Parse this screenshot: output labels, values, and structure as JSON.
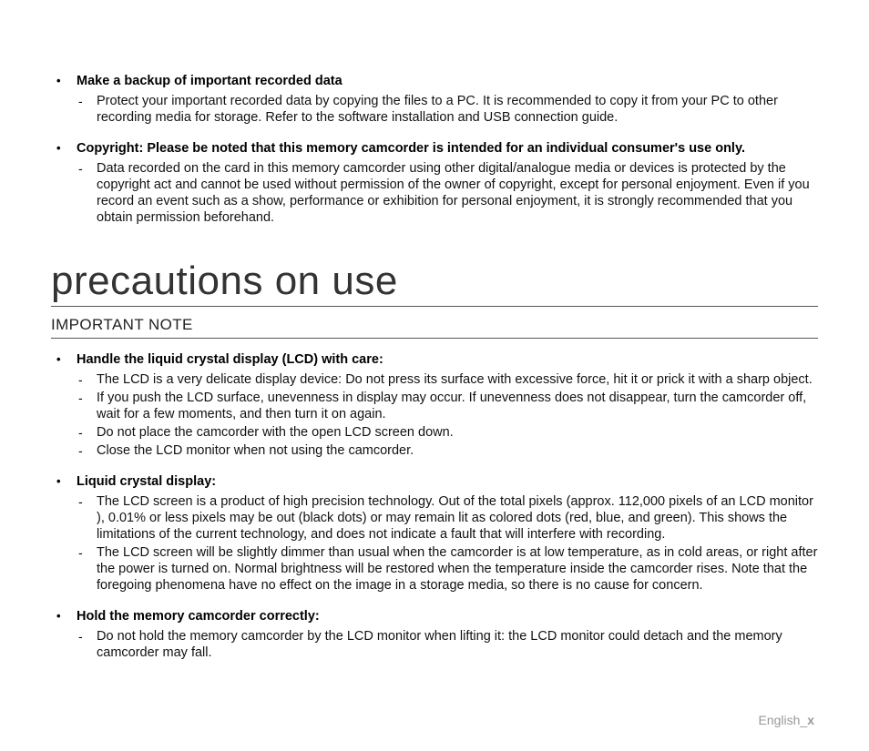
{
  "top": {
    "items": [
      {
        "label": "Make a backup of important recorded data",
        "subs": [
          "Protect your important recorded data by copying the files to a PC. It is recommended to copy it from your PC to other recording media for storage. Refer to the software installation and USB connection guide."
        ]
      },
      {
        "label": "Copyright: Please be noted that this memory camcorder is intended for an individual consumer's use only.",
        "subs": [
          "Data recorded on the card in this memory camcorder using other digital/analogue media or devices is protected by the copyright act and cannot be used without permission of the owner of copyright, except for personal enjoyment. Even if you record an event such as a show, performance or exhibition for personal enjoyment, it is strongly recommended that you obtain permission beforehand."
        ]
      }
    ]
  },
  "title": "precautions on use",
  "subtitle": "IMPORTANT NOTE",
  "notes": {
    "items": [
      {
        "label": "Handle the liquid crystal display (LCD) with care:",
        "subs": [
          "The LCD is a very delicate display device: Do not press its surface with excessive force, hit it or prick it with a sharp object.",
          "If you push the LCD surface, unevenness in display may occur. If unevenness does not disappear, turn the camcorder off, wait for a few moments, and then turn it on again.",
          "Do not place the camcorder with the open LCD screen down.",
          "Close the LCD monitor when not using the camcorder."
        ]
      },
      {
        "label": "Liquid crystal display:",
        "subs": [
          "The LCD screen is a product of high precision technology. Out of the total pixels (approx. 112,000 pixels of an LCD monitor ), 0.01% or less pixels may be out (black dots) or may remain lit as colored dots (red, blue, and green). This shows the limitations of the current technology, and does not indicate a fault that will interfere with recording.",
          "The LCD screen will be slightly dimmer than usual when the camcorder is at low temperature, as in cold areas, or right after the power is turned on. Normal brightness will be restored when the temperature inside the camcorder rises. Note that the foregoing phenomena have no effect on the image in a storage media, so there is no cause for concern."
        ]
      },
      {
        "label": "Hold the memory camcorder correctly:",
        "subs": [
          "Do not hold the memory camcorder by the LCD monitor when lifting it: the LCD monitor could detach and the memory camcorder may fall."
        ]
      }
    ]
  },
  "footer": {
    "lang": "English_",
    "page": "x"
  },
  "style": {
    "body_font_size": 14.5,
    "title_font_size": 44,
    "subtitle_font_size": 17,
    "text_color": "#000000",
    "muted_color": "#999999",
    "rule_color": "#555555",
    "background": "#ffffff"
  }
}
